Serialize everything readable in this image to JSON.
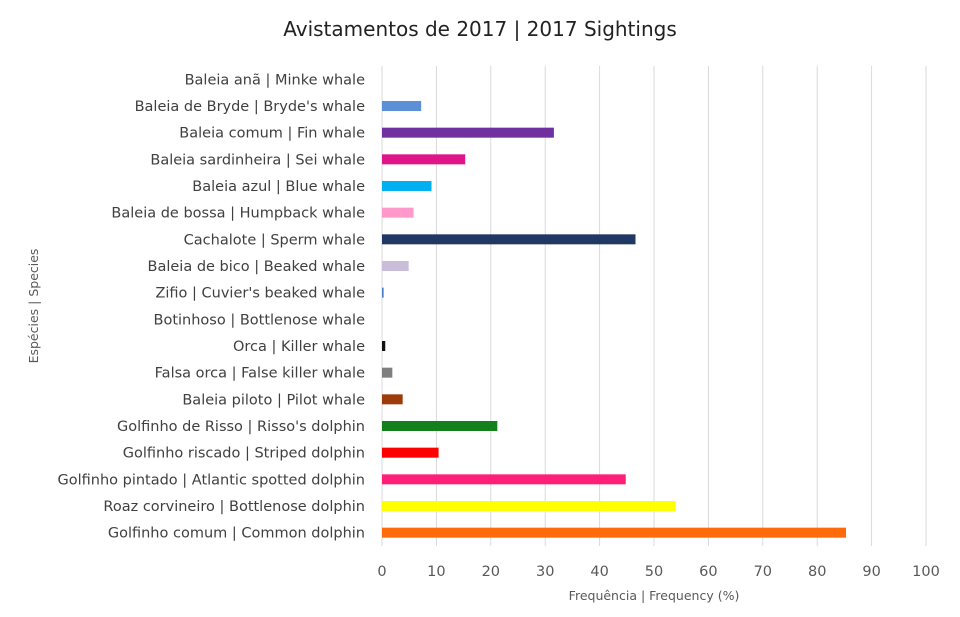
{
  "chart_data": {
    "type": "bar",
    "orientation": "horizontal",
    "title": "Avistamentos de 2017 | 2017 Sightings",
    "xlabel": "Frequência | Frequency (%)",
    "ylabel": "Espécies | Species",
    "xlim": [
      0,
      100
    ],
    "xticks": [
      0,
      10,
      20,
      30,
      40,
      50,
      60,
      70,
      80,
      90,
      100
    ],
    "grid": true,
    "legend": "none",
    "categories": [
      "Baleia anã | Minke whale",
      "Baleia de Bryde | Bryde's whale",
      "Baleia comum | Fin whale",
      "Baleia sardinheira | Sei whale",
      "Baleia azul | Blue whale",
      "Baleia de bossa | Humpback whale",
      "Cachalote | Sperm whale",
      "Baleia de bico | Beaked whale",
      "Zifio | Cuvier's beaked whale",
      "Botinhoso | Bottlenose whale",
      "Orca | Killer whale",
      "Falsa orca | False killer whale",
      "Baleia piloto | Pilot whale",
      "Golfinho de Risso | Risso's dolphin",
      "Golfinho riscado | Striped dolphin",
      "Golfinho pintado | Atlantic spotted dolphin",
      "Roaz corvineiro | Bottlenose dolphin",
      "Golfinho comum | Common dolphin"
    ],
    "values": [
      0,
      7.2,
      31.6,
      15.3,
      9.1,
      5.8,
      46.6,
      4.9,
      0.3,
      0,
      0.6,
      1.9,
      3.8,
      21.2,
      10.4,
      44.8,
      54.0,
      85.3
    ],
    "colors": [
      "#5b9bd5",
      "#5b8fd6",
      "#7030a0",
      "#e0158a",
      "#00b0f0",
      "#ff99cc",
      "#1f3864",
      "#c9bdd9",
      "#4a7ec7",
      "#4a7ec7",
      "#111111",
      "#7f7f7f",
      "#9e3b0b",
      "#14801c",
      "#ff0000",
      "#ff1f78",
      "#ffff00",
      "#ff6a0a"
    ]
  }
}
